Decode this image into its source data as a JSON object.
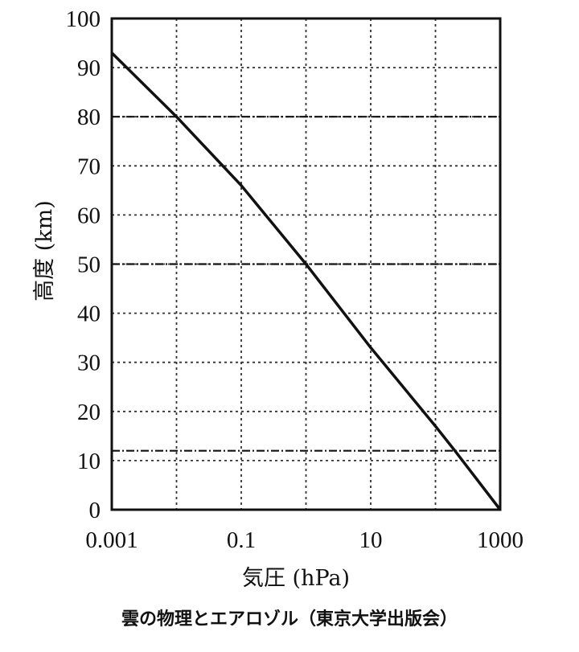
{
  "chart_data": {
    "type": "line",
    "x_scale": "log",
    "xlim": [
      0.001,
      1000
    ],
    "ylim": [
      0,
      100
    ],
    "xlabel": "気圧 (hPa)",
    "ylabel": "高度 (km)",
    "x_ticks": [
      0.001,
      0.01,
      0.1,
      1,
      10,
      100,
      1000
    ],
    "x_tick_labels": [
      "0.001",
      "0.1",
      "10",
      "1000"
    ],
    "x_tick_label_values": [
      0.001,
      0.1,
      10,
      1000
    ],
    "y_ticks": [
      0,
      10,
      20,
      30,
      40,
      50,
      60,
      70,
      80,
      90,
      100
    ],
    "y_tick_labels": [
      "0",
      "10",
      "20",
      "30",
      "40",
      "50",
      "60",
      "70",
      "80",
      "90",
      "100"
    ],
    "grid": true,
    "horizontal_reference_lines": [
      12,
      50,
      80
    ],
    "series": [
      {
        "x": [
          0.001,
          0.01,
          0.1,
          1,
          10,
          100,
          200,
          1000
        ],
        "y": [
          93,
          80,
          66,
          50,
          33,
          17,
          12,
          0
        ]
      }
    ]
  },
  "caption": "雲の物理とエアロゾル（東京大学出版会）",
  "colors": {
    "ink": "#111111",
    "background": "#ffffff"
  }
}
